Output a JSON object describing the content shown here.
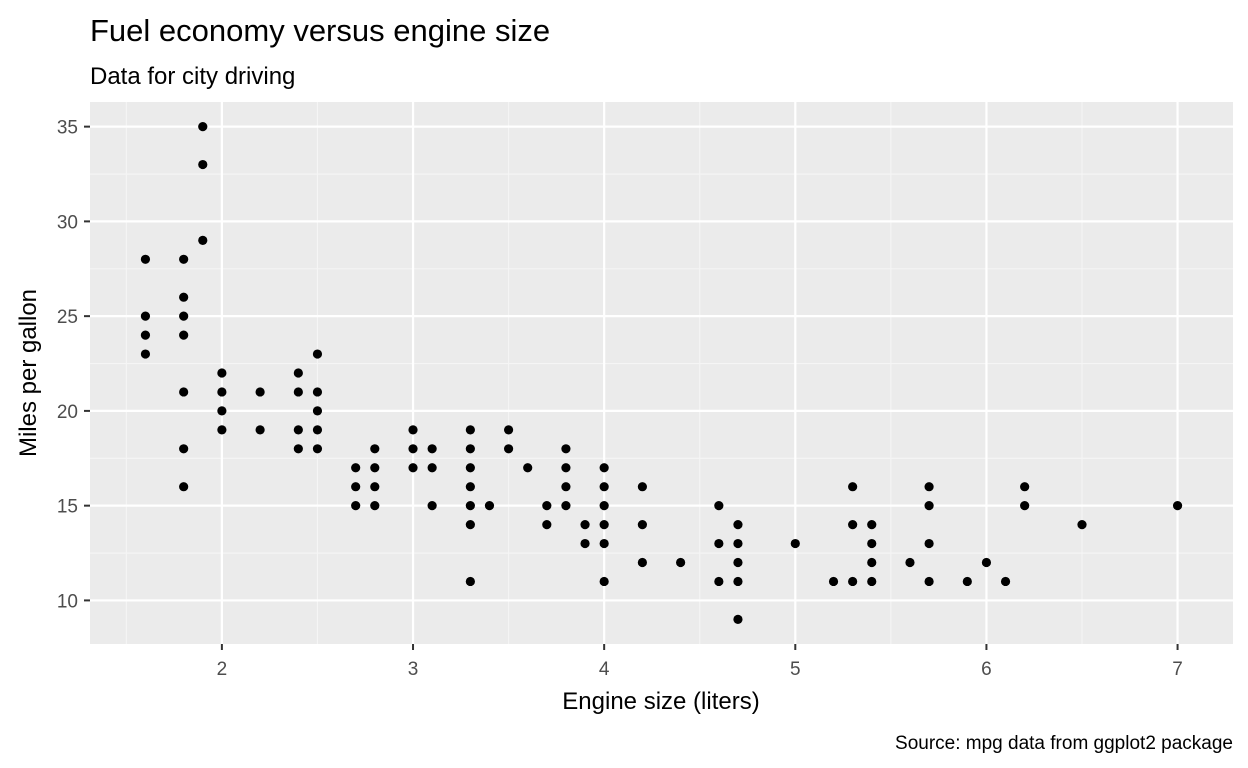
{
  "chart_data": {
    "type": "scatter",
    "title": "Fuel economy versus engine size",
    "subtitle": "Data for city driving",
    "xlabel": "Engine size (liters)",
    "ylabel": "Miles per gallon",
    "caption": "Source: mpg data from ggplot2 package",
    "xlim": [
      1.31,
      7.29
    ],
    "ylim": [
      7.7,
      36.3
    ],
    "x_ticks": [
      2,
      3,
      4,
      5,
      6,
      7
    ],
    "y_ticks": [
      10,
      15,
      20,
      25,
      30,
      35
    ],
    "x_tick_labels": [
      "2",
      "3",
      "4",
      "5",
      "6",
      "7"
    ],
    "y_tick_labels": [
      "10",
      "15",
      "20",
      "25",
      "30",
      "35"
    ],
    "grid": true,
    "legend": "none",
    "colors": {
      "panel_background": "#EBEBEB",
      "grid_major": "#FFFFFF",
      "grid_minor": "#F5F5F5",
      "point": "#000000",
      "tick_label": "#4D4D4D"
    },
    "points": [
      [
        1.6,
        28
      ],
      [
        1.6,
        25
      ],
      [
        1.6,
        24
      ],
      [
        1.6,
        23
      ],
      [
        1.8,
        28
      ],
      [
        1.8,
        26
      ],
      [
        1.8,
        25
      ],
      [
        1.8,
        24
      ],
      [
        1.8,
        21
      ],
      [
        1.8,
        18
      ],
      [
        1.8,
        16
      ],
      [
        1.9,
        35
      ],
      [
        1.9,
        33
      ],
      [
        1.9,
        29
      ],
      [
        2.0,
        22
      ],
      [
        2.0,
        21
      ],
      [
        2.0,
        20
      ],
      [
        2.0,
        19
      ],
      [
        2.2,
        21
      ],
      [
        2.2,
        19
      ],
      [
        2.4,
        22
      ],
      [
        2.4,
        21
      ],
      [
        2.4,
        19
      ],
      [
        2.4,
        18
      ],
      [
        2.5,
        23
      ],
      [
        2.5,
        21
      ],
      [
        2.5,
        20
      ],
      [
        2.5,
        19
      ],
      [
        2.5,
        18
      ],
      [
        2.7,
        17
      ],
      [
        2.7,
        16
      ],
      [
        2.7,
        15
      ],
      [
        2.8,
        18
      ],
      [
        2.8,
        17
      ],
      [
        2.8,
        16
      ],
      [
        2.8,
        15
      ],
      [
        3.0,
        19
      ],
      [
        3.0,
        18
      ],
      [
        3.0,
        17
      ],
      [
        3.1,
        18
      ],
      [
        3.1,
        17
      ],
      [
        3.1,
        15
      ],
      [
        3.3,
        19
      ],
      [
        3.3,
        18
      ],
      [
        3.3,
        17
      ],
      [
        3.3,
        16
      ],
      [
        3.3,
        15
      ],
      [
        3.3,
        14
      ],
      [
        3.3,
        11
      ],
      [
        3.4,
        15
      ],
      [
        3.5,
        19
      ],
      [
        3.5,
        18
      ],
      [
        3.6,
        17
      ],
      [
        3.7,
        15
      ],
      [
        3.7,
        14
      ],
      [
        3.8,
        18
      ],
      [
        3.8,
        17
      ],
      [
        3.8,
        16
      ],
      [
        3.8,
        15
      ],
      [
        3.9,
        14
      ],
      [
        3.9,
        13
      ],
      [
        4.0,
        17
      ],
      [
        4.0,
        16
      ],
      [
        4.0,
        15
      ],
      [
        4.0,
        14
      ],
      [
        4.0,
        13
      ],
      [
        4.0,
        11
      ],
      [
        4.2,
        16
      ],
      [
        4.2,
        14
      ],
      [
        4.2,
        12
      ],
      [
        4.4,
        12
      ],
      [
        4.6,
        15
      ],
      [
        4.6,
        13
      ],
      [
        4.6,
        11
      ],
      [
        4.7,
        14
      ],
      [
        4.7,
        13
      ],
      [
        4.7,
        12
      ],
      [
        4.7,
        11
      ],
      [
        4.7,
        9
      ],
      [
        5.0,
        13
      ],
      [
        5.2,
        11
      ],
      [
        5.3,
        16
      ],
      [
        5.3,
        14
      ],
      [
        5.3,
        11
      ],
      [
        5.4,
        14
      ],
      [
        5.4,
        13
      ],
      [
        5.4,
        12
      ],
      [
        5.4,
        11
      ],
      [
        5.6,
        12
      ],
      [
        5.7,
        16
      ],
      [
        5.7,
        15
      ],
      [
        5.7,
        13
      ],
      [
        5.7,
        11
      ],
      [
        5.9,
        11
      ],
      [
        6.0,
        12
      ],
      [
        6.1,
        11
      ],
      [
        6.2,
        16
      ],
      [
        6.2,
        15
      ],
      [
        6.5,
        14
      ],
      [
        7.0,
        15
      ]
    ]
  }
}
